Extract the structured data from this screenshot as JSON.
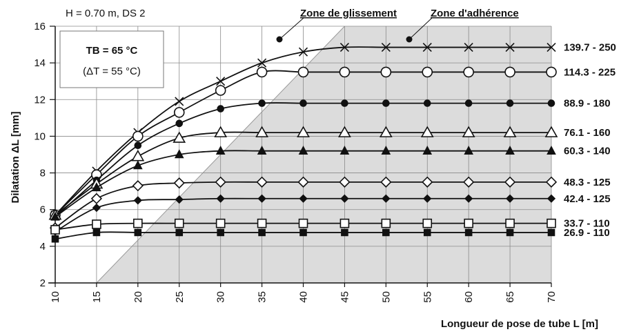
{
  "chart_data": {
    "type": "line",
    "title": "H = 0.70 m, DS 2",
    "xlabel": "Longueur de pose de tube L [m]",
    "ylabel": "Dilatation ΔL [mm]",
    "xlim": [
      10,
      70
    ],
    "ylim": [
      2,
      16
    ],
    "x_ticks": [
      10,
      15,
      20,
      25,
      30,
      35,
      40,
      45,
      50,
      55,
      60,
      65,
      70
    ],
    "y_ticks": [
      2,
      4,
      6,
      8,
      10,
      12,
      14,
      16
    ],
    "grid": true,
    "box": {
      "line1": "TB = 65 °C",
      "line2": "(ΔT = 55 °C)"
    },
    "zones": {
      "sliding": "Zone de glissement",
      "adhesion": "Zone d'adhérence"
    },
    "x": [
      10,
      15,
      20,
      25,
      30,
      35,
      40,
      45,
      50,
      55,
      60,
      65,
      70
    ],
    "series": [
      {
        "name": "139.7 - 250",
        "marker": "cross",
        "values": [
          5.7,
          8.1,
          10.2,
          11.9,
          13.0,
          14.0,
          14.6,
          14.85,
          14.85,
          14.85,
          14.85,
          14.85,
          14.85
        ]
      },
      {
        "name": "114.3 - 225",
        "marker": "circle-open",
        "values": [
          5.7,
          7.9,
          10.0,
          11.3,
          12.5,
          13.5,
          13.5,
          13.5,
          13.5,
          13.5,
          13.5,
          13.5,
          13.5
        ]
      },
      {
        "name": "88.9 - 180",
        "marker": "circle-filled",
        "values": [
          5.6,
          7.6,
          9.5,
          10.7,
          11.5,
          11.8,
          11.8,
          11.8,
          11.8,
          11.8,
          11.8,
          11.8,
          11.8
        ]
      },
      {
        "name": "76.1 - 160",
        "marker": "triangle-open",
        "values": [
          5.7,
          7.4,
          8.9,
          9.9,
          10.2,
          10.2,
          10.2,
          10.2,
          10.2,
          10.2,
          10.2,
          10.2,
          10.2
        ]
      },
      {
        "name": "60.3 - 140",
        "marker": "triangle-filled",
        "values": [
          5.6,
          7.2,
          8.4,
          9.0,
          9.2,
          9.2,
          9.2,
          9.2,
          9.2,
          9.2,
          9.2,
          9.2,
          9.2
        ]
      },
      {
        "name": "48.3 - 125",
        "marker": "diamond-open",
        "values": [
          5.0,
          6.6,
          7.3,
          7.45,
          7.5,
          7.5,
          7.5,
          7.5,
          7.5,
          7.5,
          7.5,
          7.5,
          7.5
        ]
      },
      {
        "name": "42.4 - 125",
        "marker": "diamond-filled",
        "values": [
          4.8,
          6.1,
          6.5,
          6.55,
          6.6,
          6.6,
          6.6,
          6.6,
          6.6,
          6.6,
          6.6,
          6.6,
          6.6
        ]
      },
      {
        "name": "33.7 - 110",
        "marker": "square-open",
        "values": [
          4.9,
          5.2,
          5.25,
          5.25,
          5.25,
          5.25,
          5.25,
          5.25,
          5.25,
          5.25,
          5.25,
          5.25,
          5.25
        ]
      },
      {
        "name": "26.9 - 110",
        "marker": "square-filled",
        "values": [
          4.4,
          4.75,
          4.75,
          4.75,
          4.75,
          4.75,
          4.75,
          4.75,
          4.75,
          4.75,
          4.75,
          4.75,
          4.75
        ]
      }
    ]
  }
}
